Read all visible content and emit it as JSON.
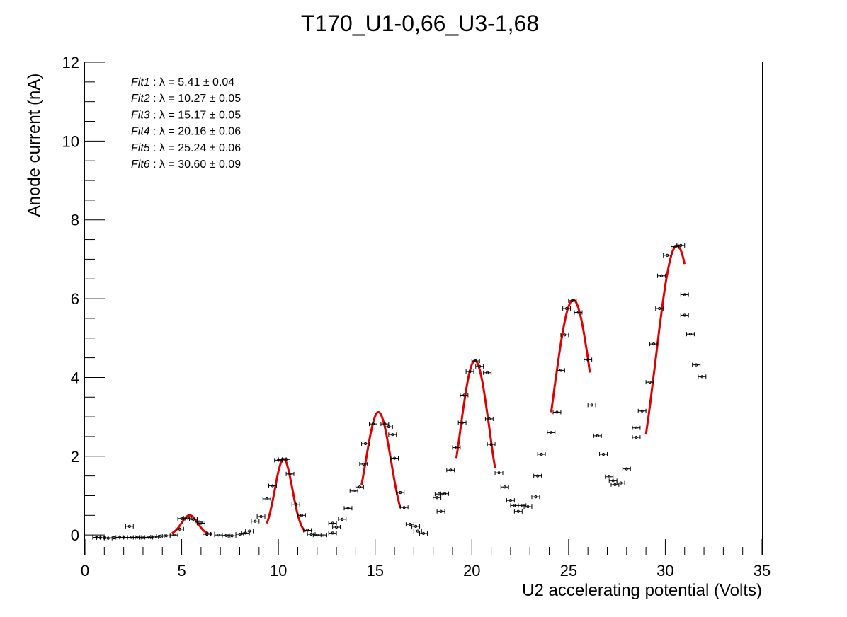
{
  "chart_data": {
    "type": "scatter",
    "title": "T170_U1-0,66_U3-1,68",
    "xlabel": "U2 accelerating potential (Volts)",
    "ylabel": "Anode current (nA)",
    "xlim": [
      0,
      35
    ],
    "ylim": [
      -0.5,
      12
    ],
    "xticks": [
      0,
      5,
      10,
      15,
      20,
      25,
      30,
      35
    ],
    "yticks": [
      0,
      2,
      4,
      6,
      8,
      10,
      12
    ],
    "xtick_labels": [
      "0",
      "5",
      "10",
      "15",
      "20",
      "25",
      "30",
      "35"
    ],
    "ytick_labels": [
      "0",
      "2",
      "4",
      "6",
      "8",
      "10",
      "12"
    ],
    "grid": false,
    "legend_position": "top-left",
    "legend": [
      {
        "label": "Fit1",
        "text": " : λ = 5.41 ± 0.04"
      },
      {
        "label": "Fit2",
        "text": " : λ = 10.27 ± 0.05"
      },
      {
        "label": "Fit3",
        "text": " : λ = 15.17 ± 0.05"
      },
      {
        "label": "Fit4",
        "text": " : λ = 20.16 ± 0.06"
      },
      {
        "label": "Fit5",
        "text": " : λ = 25.24 ± 0.06"
      },
      {
        "label": "Fit6",
        "text": " : λ = 30.60 ± 0.09"
      }
    ],
    "x_error": 0.2,
    "series": [
      {
        "marker_color": "#000000",
        "points": [
          [
            0.6,
            -0.06
          ],
          [
            0.8,
            -0.07
          ],
          [
            1.0,
            -0.07
          ],
          [
            1.2,
            -0.08
          ],
          [
            1.5,
            -0.07
          ],
          [
            1.8,
            -0.06
          ],
          [
            2.0,
            -0.06
          ],
          [
            2.3,
            0.22
          ],
          [
            2.4,
            -0.06
          ],
          [
            2.7,
            -0.06
          ],
          [
            3.0,
            -0.06
          ],
          [
            3.3,
            -0.06
          ],
          [
            3.6,
            -0.05
          ],
          [
            3.9,
            -0.03
          ],
          [
            4.2,
            -0.02
          ],
          [
            4.6,
            0.0
          ],
          [
            4.9,
            0.15
          ],
          [
            5.0,
            0.42
          ],
          [
            5.3,
            0.43
          ],
          [
            5.6,
            0.4
          ],
          [
            5.9,
            0.33
          ],
          [
            6.0,
            0.3
          ],
          [
            6.3,
            0.02
          ],
          [
            6.5,
            0.03
          ],
          [
            6.9,
            0.0
          ],
          [
            7.3,
            -0.01
          ],
          [
            7.6,
            -0.02
          ],
          [
            8.0,
            0.02
          ],
          [
            8.3,
            0.05
          ],
          [
            8.5,
            0.1
          ],
          [
            8.8,
            0.35
          ],
          [
            9.1,
            0.47
          ],
          [
            9.4,
            0.92
          ],
          [
            9.7,
            1.25
          ],
          [
            10.0,
            1.9
          ],
          [
            10.2,
            1.92
          ],
          [
            10.4,
            1.92
          ],
          [
            10.6,
            1.55
          ],
          [
            10.9,
            0.78
          ],
          [
            11.2,
            0.5
          ],
          [
            11.5,
            0.12
          ],
          [
            11.7,
            0.02
          ],
          [
            12.0,
            0.0
          ],
          [
            12.3,
            0.0
          ],
          [
            12.8,
            0.05
          ],
          [
            12.8,
            0.3
          ],
          [
            13.0,
            0.2
          ],
          [
            13.3,
            0.4
          ],
          [
            13.6,
            0.68
          ],
          [
            13.9,
            1.12
          ],
          [
            14.2,
            1.22
          ],
          [
            14.4,
            1.8
          ],
          [
            14.5,
            2.32
          ],
          [
            14.9,
            2.82
          ],
          [
            15.5,
            2.82
          ],
          [
            15.7,
            2.75
          ],
          [
            15.9,
            2.55
          ],
          [
            16.0,
            1.95
          ],
          [
            16.3,
            1.08
          ],
          [
            16.5,
            0.7
          ],
          [
            16.8,
            0.27
          ],
          [
            17.1,
            0.22
          ],
          [
            17.2,
            0.1
          ],
          [
            17.5,
            0.04
          ],
          [
            18.2,
            0.95
          ],
          [
            18.3,
            1.04
          ],
          [
            18.4,
            0.6
          ],
          [
            18.6,
            1.05
          ],
          [
            18.9,
            1.65
          ],
          [
            19.2,
            2.22
          ],
          [
            19.5,
            2.85
          ],
          [
            19.6,
            3.55
          ],
          [
            19.9,
            4.15
          ],
          [
            20.2,
            4.42
          ],
          [
            20.4,
            4.28
          ],
          [
            20.8,
            4.12
          ],
          [
            20.9,
            2.95
          ],
          [
            21.0,
            2.3
          ],
          [
            21.4,
            1.58
          ],
          [
            21.7,
            1.22
          ],
          [
            22.0,
            0.88
          ],
          [
            22.2,
            0.75
          ],
          [
            22.4,
            0.6
          ],
          [
            22.6,
            0.75
          ],
          [
            22.9,
            0.72
          ],
          [
            23.3,
            0.97
          ],
          [
            23.4,
            1.5
          ],
          [
            23.6,
            2.05
          ],
          [
            24.1,
            2.6
          ],
          [
            24.4,
            3.12
          ],
          [
            24.6,
            4.18
          ],
          [
            24.8,
            5.08
          ],
          [
            24.9,
            5.75
          ],
          [
            25.2,
            5.95
          ],
          [
            25.5,
            5.65
          ],
          [
            26.0,
            4.45
          ],
          [
            26.2,
            3.3
          ],
          [
            26.5,
            2.52
          ],
          [
            26.8,
            2.05
          ],
          [
            27.1,
            1.48
          ],
          [
            27.3,
            1.38
          ],
          [
            27.4,
            1.28
          ],
          [
            27.7,
            1.32
          ],
          [
            28.0,
            1.68
          ],
          [
            28.5,
            2.48
          ],
          [
            28.5,
            2.72
          ],
          [
            28.8,
            3.15
          ],
          [
            29.2,
            3.88
          ],
          [
            29.4,
            4.85
          ],
          [
            29.7,
            5.75
          ],
          [
            29.8,
            6.58
          ],
          [
            30.1,
            7.1
          ],
          [
            30.5,
            7.32
          ],
          [
            30.8,
            7.35
          ],
          [
            31.0,
            6.1
          ],
          [
            31.0,
            5.58
          ],
          [
            31.3,
            5.1
          ],
          [
            31.6,
            4.32
          ],
          [
            31.9,
            4.02
          ]
        ]
      }
    ],
    "fits": [
      {
        "name": "Fit1",
        "color": "#e00000",
        "mu": 5.41,
        "amp": 0.5,
        "sigma": 0.42,
        "x_range": [
          4.5,
          6.4
        ]
      },
      {
        "name": "Fit2",
        "color": "#e00000",
        "mu": 10.27,
        "amp": 1.93,
        "sigma": 0.45,
        "x_range": [
          9.4,
          11.4
        ]
      },
      {
        "name": "Fit3",
        "color": "#e00000",
        "mu": 15.17,
        "amp": 3.12,
        "sigma": 0.65,
        "x_range": [
          14.3,
          16.3
        ]
      },
      {
        "name": "Fit4",
        "color": "#e00000",
        "mu": 20.16,
        "amp": 4.43,
        "sigma": 0.75,
        "x_range": [
          19.2,
          21.2
        ]
      },
      {
        "name": "Fit5",
        "color": "#e00000",
        "mu": 25.24,
        "amp": 5.97,
        "sigma": 1.0,
        "x_range": [
          24.1,
          26.1
        ]
      },
      {
        "name": "Fit6",
        "color": "#e00000",
        "mu": 30.6,
        "amp": 7.35,
        "sigma": 1.1,
        "x_range": [
          29.0,
          31.0
        ]
      }
    ]
  }
}
